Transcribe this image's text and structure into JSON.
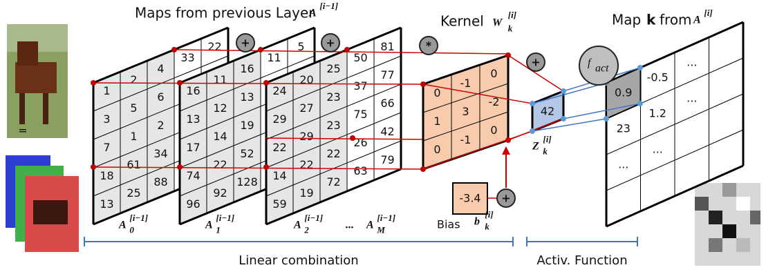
{
  "header": {
    "maps_title": "Maps from previous Layer",
    "maps_math": {
      "base": "A",
      "sup": "[i−1]"
    },
    "kernel_title": "Kernel",
    "kernel_math": {
      "base": "W",
      "sub": "k",
      "sup": "[i]"
    },
    "output_title_pre": "Map",
    "output_title_k": "k",
    "output_title_post": "from",
    "output_math": {
      "base": "A",
      "sup": "[i]"
    }
  },
  "operators": {
    "plus": "+",
    "conv": "*",
    "equals": "=",
    "activation": {
      "base": "f",
      "sub": "act"
    }
  },
  "maps": [
    {
      "label": {
        "base": "A",
        "sub": "0",
        "sup": "[i−1]"
      },
      "cells": [
        [
          1,
          2,
          4,
          33,
          22
        ],
        [
          3,
          5,
          6
        ],
        [
          7,
          1,
          2
        ],
        [
          18,
          61,
          34
        ],
        [
          13,
          25,
          88
        ]
      ]
    },
    {
      "label": {
        "base": "A",
        "sub": "1",
        "sup": "[i−1]"
      },
      "cells": [
        [
          16,
          11,
          16,
          11,
          5
        ],
        [
          13,
          12,
          13
        ],
        [
          17,
          14,
          19
        ],
        [
          74,
          22,
          52
        ],
        [
          96,
          92,
          128
        ]
      ]
    },
    {
      "label": {
        "base": "A",
        "sub": "2",
        "sup": "[i−1]"
      },
      "cells": [
        [
          24,
          20,
          25,
          50,
          81
        ],
        [
          29,
          27,
          23,
          37,
          77
        ],
        [
          22,
          29,
          23,
          75,
          66
        ],
        [
          14,
          22,
          22,
          26,
          42
        ],
        [
          59,
          19,
          72,
          63,
          79
        ]
      ]
    }
  ],
  "ellipsis": "...",
  "last_map_label": {
    "base": "A",
    "sub": "M",
    "sup": "[i−1]"
  },
  "kernel": {
    "cells": [
      [
        0,
        -1,
        0
      ],
      [
        1,
        3,
        -2
      ],
      [
        0,
        -1,
        0
      ]
    ]
  },
  "z": {
    "value": 42,
    "label": {
      "base": "Z",
      "sub": "k",
      "sup": "[i]"
    }
  },
  "bias": {
    "value": -3.4,
    "text": "Bias",
    "label": {
      "base": "b",
      "sub": "k",
      "sup": "[i]"
    }
  },
  "output": {
    "cells": [
      [
        0.9,
        -0.5,
        "..."
      ],
      [
        23,
        1.2,
        "..."
      ],
      [
        "...",
        "..."
      ]
    ]
  },
  "footer": {
    "linear": "Linear combination",
    "activation": "Activ. Function"
  }
}
